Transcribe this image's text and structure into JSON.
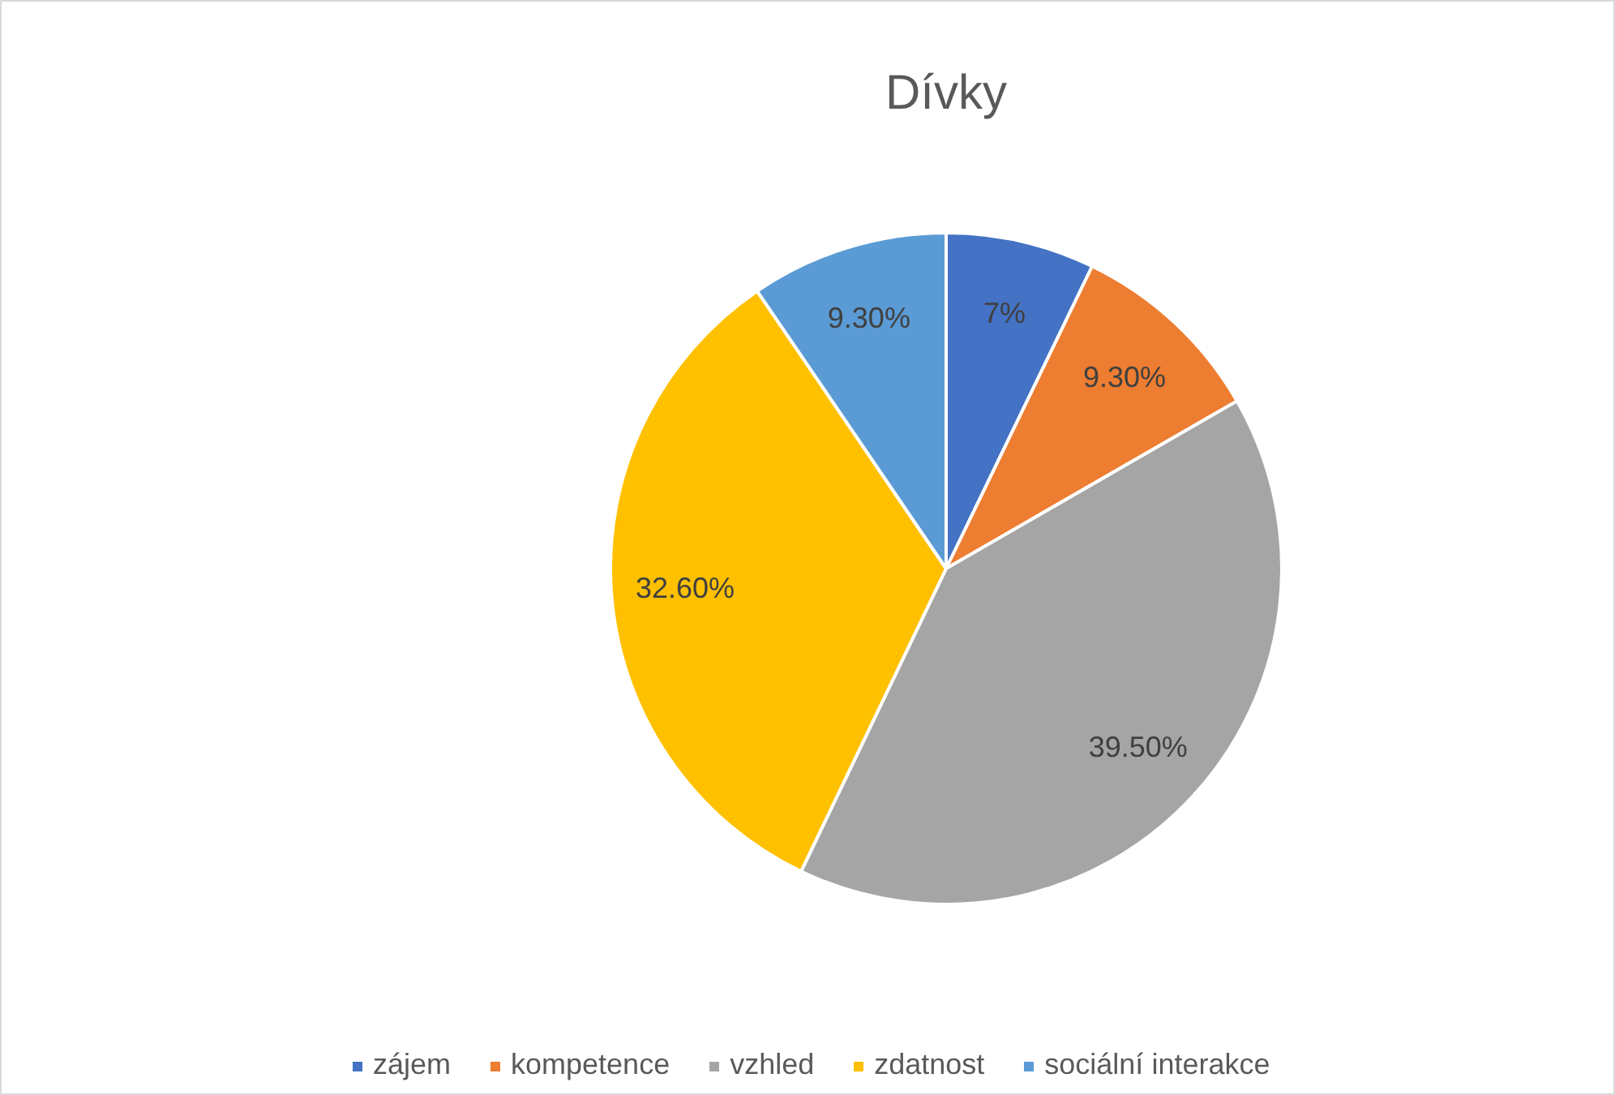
{
  "chart_data": {
    "type": "pie",
    "title": "Dívky",
    "categories": [
      "zájem",
      "kompetence",
      "vzhled",
      "zdatnost",
      "sociální interakce"
    ],
    "values": [
      7,
      9.3,
      39.5,
      32.6,
      9.3
    ],
    "value_labels": [
      "7%",
      "9.30%",
      "39.50%",
      "32.60%",
      "9.30%"
    ],
    "colors": [
      "#4472c4",
      "#ed7d31",
      "#a5a5a5",
      "#ffc000",
      "#5b9bd5"
    ],
    "legend": "bottom"
  }
}
